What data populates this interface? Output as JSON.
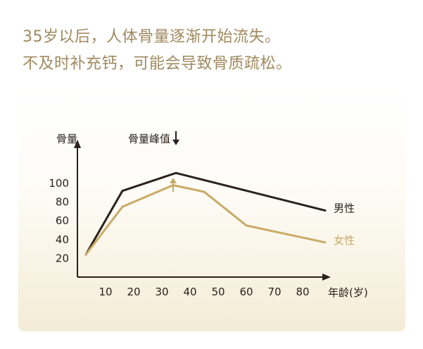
{
  "header": {
    "line1": "35岁以后，人体骨量逐渐开始流失。",
    "line2": "不及时补充钙，可能会导致骨质疏松。"
  },
  "chart_data": {
    "type": "line",
    "xlabel": "年龄(岁)",
    "ylabel": "骨量",
    "x_ticks": [
      10,
      20,
      30,
      40,
      50,
      60,
      70,
      80
    ],
    "y_ticks": [
      20,
      40,
      60,
      80,
      100
    ],
    "xlim": [
      0,
      88
    ],
    "ylim": [
      0,
      118
    ],
    "grid": false,
    "legend": "labels at line ends (right)",
    "annotation": "骨量峰值",
    "annotation_x": 35,
    "colors": {
      "male": "#2a211c",
      "female": "#c9aa66",
      "axis": "#2a211c",
      "female_arrow": "#c9aa66"
    },
    "series": [
      {
        "name": "男性",
        "x": [
          3,
          16,
          35,
          88
        ],
        "y": [
          24,
          92,
          111,
          71
        ]
      },
      {
        "name": "女性",
        "x": [
          3,
          16,
          34,
          45,
          60,
          88
        ],
        "y": [
          24,
          75,
          98,
          91,
          55,
          37
        ]
      }
    ]
  }
}
